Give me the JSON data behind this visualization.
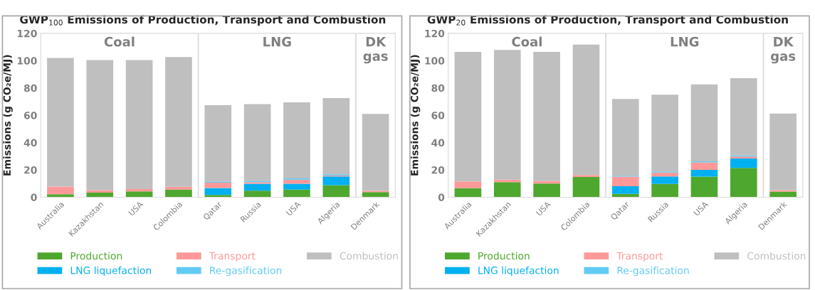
{
  "chart_data": [
    {
      "type": "bar",
      "stacked": true,
      "title": "GWP$_{100}$ Emissions of Production, Transport and Combustion",
      "ylabel": "Emissions (g CO₂e/MJ)",
      "categories": [
        "Australia",
        "Kazakhstan",
        "USA",
        "Colombia",
        "Qatar",
        "Russia",
        "USA",
        "Algeria",
        "Denmark"
      ],
      "series": [
        {
          "name": "Production",
          "color": "#4ea72e",
          "values": [
            2.2,
            3.4,
            4.3,
            5.5,
            1.6,
            4.8,
            5.5,
            8.8,
            3.8
          ]
        },
        {
          "name": "LNG liquefaction",
          "color": "#00b0f0",
          "values": [
            0,
            0,
            0,
            0,
            5.1,
            5.0,
            4.3,
            6.4,
            0
          ]
        },
        {
          "name": "Transport",
          "color": "#ff9999",
          "values": [
            5.6,
            1.8,
            1.7,
            2.1,
            4.0,
            1.2,
            3.1,
            0.7,
            0.9
          ]
        },
        {
          "name": "Re-gasification",
          "color": "#61cbf4",
          "values": [
            0,
            0,
            0,
            0,
            0.7,
            0.9,
            0.9,
            0.8,
            0
          ]
        },
        {
          "name": "Combustion",
          "color": "#bfbfbf",
          "values": [
            94.2,
            95.3,
            94.5,
            95.0,
            56.0,
            56.2,
            55.7,
            55.9,
            56.3
          ]
        }
      ],
      "ylim": [
        0,
        120
      ],
      "yticks": [
        0,
        20,
        40,
        60,
        80,
        100,
        120
      ],
      "grid": false,
      "legend": "bottom",
      "annotations": [
        "Coal",
        "LNG",
        "DK\ngas"
      ]
    },
    {
      "type": "bar",
      "stacked": true,
      "title": "GWP$_{20}$ Emissions of Production, Transport and Combustion",
      "ylabel": "Emissions (g CO₂e/MJ)",
      "categories": [
        "Australia",
        "Kazakhstan",
        "USA",
        "Colombia",
        "Qatar",
        "Russia",
        "USA",
        "Algeria",
        "Denmark"
      ],
      "series": [
        {
          "name": "Production",
          "color": "#4ea72e",
          "values": [
            6.6,
            11.0,
            10.0,
            14.8,
            2.4,
            9.7,
            15.0,
            21.4,
            4.1
          ]
        },
        {
          "name": "LNG liquefaction",
          "color": "#00b0f0",
          "values": [
            0,
            0,
            0,
            0,
            5.7,
            5.5,
            5.0,
            7.0,
            0
          ]
        },
        {
          "name": "Transport",
          "color": "#ff9999",
          "values": [
            5.0,
            1.8,
            1.9,
            1.4,
            6.9,
            2.9,
            5.5,
            1.4,
            1.1
          ]
        },
        {
          "name": "Re-gasification",
          "color": "#61cbf4",
          "values": [
            0,
            0,
            0,
            0,
            0.7,
            0.7,
            0.7,
            0.9,
            0
          ]
        },
        {
          "name": "Combustion",
          "color": "#bfbfbf",
          "values": [
            94.8,
            95.0,
            94.5,
            95.5,
            56.2,
            56.2,
            56.4,
            56.4,
            56.0
          ]
        }
      ],
      "ylim": [
        0,
        120
      ],
      "yticks": [
        0,
        20,
        40,
        60,
        80,
        100,
        120
      ],
      "grid": false,
      "legend": "bottom",
      "annotations": [
        "Coal",
        "LNG",
        "DK\ngas"
      ]
    }
  ]
}
